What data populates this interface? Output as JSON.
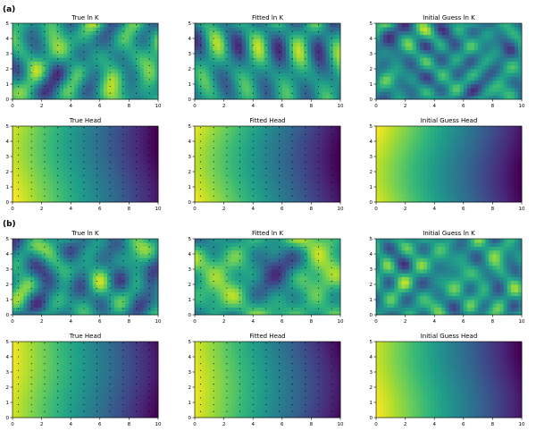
{
  "figure": {
    "panel_labels": [
      "(a)",
      "(b)"
    ]
  },
  "colormap": [
    "#440154",
    "#482878",
    "#3e4989",
    "#31688e",
    "#26828e",
    "#1f9e89",
    "#35b779",
    "#6ece58",
    "#b5de2b",
    "#fde725"
  ],
  "chart_data": [
    {
      "type": "heatmap",
      "group": "(a)",
      "title": "True ln K",
      "field": "lnk",
      "seed": 11,
      "xlim": [
        0,
        10
      ],
      "ylim": [
        0,
        5
      ],
      "xticks": [
        0,
        2,
        4,
        6,
        8,
        10
      ],
      "yticks": [
        0,
        1,
        2,
        3,
        4,
        5
      ],
      "wells": true
    },
    {
      "type": "heatmap",
      "group": "(a)",
      "title": "Fitted ln K",
      "field": "lnk_smooth",
      "seed": 12,
      "xlim": [
        0,
        10
      ],
      "ylim": [
        0,
        5
      ],
      "xticks": [
        0,
        2,
        4,
        6,
        8,
        10
      ],
      "yticks": [
        0,
        1,
        2,
        3,
        4,
        5
      ],
      "wells": true
    },
    {
      "type": "heatmap",
      "group": "(a)",
      "title": "Initial Guess ln K",
      "field": "lnk_rough",
      "seed": 13,
      "xlim": [
        0,
        10
      ],
      "ylim": [
        0,
        5
      ],
      "xticks": [
        0,
        2,
        4,
        6,
        8,
        10
      ],
      "yticks": [
        0,
        1,
        2,
        3,
        4,
        5
      ],
      "wells": false
    },
    {
      "type": "heatmap",
      "group": "(a)",
      "title": "True Head",
      "field": "head",
      "seed": 14,
      "xlim": [
        0,
        10
      ],
      "ylim": [
        0,
        5
      ],
      "xticks": [
        0,
        2,
        4,
        6,
        8,
        10
      ],
      "yticks": [
        0,
        1,
        2,
        3,
        4,
        5
      ],
      "wells": true
    },
    {
      "type": "heatmap",
      "group": "(a)",
      "title": "Fitted Head",
      "field": "head",
      "seed": 15,
      "xlim": [
        0,
        10
      ],
      "ylim": [
        0,
        5
      ],
      "xticks": [
        0,
        2,
        4,
        6,
        8,
        10
      ],
      "yticks": [
        0,
        1,
        2,
        3,
        4,
        5
      ],
      "wells": true
    },
    {
      "type": "heatmap",
      "group": "(a)",
      "title": "Initial Guess Head",
      "field": "head",
      "seed": 16,
      "xlim": [
        0,
        10
      ],
      "ylim": [
        0,
        5
      ],
      "xticks": [
        0,
        2,
        4,
        6,
        8,
        10
      ],
      "yticks": [
        0,
        1,
        2,
        3,
        4,
        5
      ],
      "wells": false
    },
    {
      "type": "heatmap",
      "group": "(b)",
      "title": "True ln K",
      "field": "lnk",
      "seed": 21,
      "xlim": [
        0,
        10
      ],
      "ylim": [
        0,
        5
      ],
      "xticks": [
        0,
        2,
        4,
        6,
        8,
        10
      ],
      "yticks": [
        0,
        1,
        2,
        3,
        4,
        5
      ],
      "wells": true
    },
    {
      "type": "heatmap",
      "group": "(b)",
      "title": "Fitted ln K",
      "field": "lnk",
      "seed": 22,
      "xlim": [
        0,
        10
      ],
      "ylim": [
        0,
        5
      ],
      "xticks": [
        0,
        2,
        4,
        6,
        8,
        10
      ],
      "yticks": [
        0,
        1,
        2,
        3,
        4,
        5
      ],
      "wells": true
    },
    {
      "type": "heatmap",
      "group": "(b)",
      "title": "Initial Guess ln K",
      "field": "lnk_rough",
      "seed": 23,
      "xlim": [
        0,
        10
      ],
      "ylim": [
        0,
        5
      ],
      "xticks": [
        0,
        2,
        4,
        6,
        8,
        10
      ],
      "yticks": [
        0,
        1,
        2,
        3,
        4,
        5
      ],
      "wells": false
    },
    {
      "type": "heatmap",
      "group": "(b)",
      "title": "True Head",
      "field": "head",
      "seed": 24,
      "xlim": [
        0,
        10
      ],
      "ylim": [
        0,
        5
      ],
      "xticks": [
        0,
        2,
        4,
        6,
        8,
        10
      ],
      "yticks": [
        0,
        1,
        2,
        3,
        4,
        5
      ],
      "wells": true
    },
    {
      "type": "heatmap",
      "group": "(b)",
      "title": "Fitted Head",
      "field": "head",
      "seed": 25,
      "xlim": [
        0,
        10
      ],
      "ylim": [
        0,
        5
      ],
      "xticks": [
        0,
        2,
        4,
        6,
        8,
        10
      ],
      "yticks": [
        0,
        1,
        2,
        3,
        4,
        5
      ],
      "wells": true
    },
    {
      "type": "heatmap",
      "group": "(b)",
      "title": "Initial Guess Head",
      "field": "head",
      "seed": 26,
      "xlim": [
        0,
        10
      ],
      "ylim": [
        0,
        5
      ],
      "xticks": [
        0,
        2,
        4,
        6,
        8,
        10
      ],
      "yticks": [
        0,
        1,
        2,
        3,
        4,
        5
      ],
      "wells": false
    }
  ]
}
